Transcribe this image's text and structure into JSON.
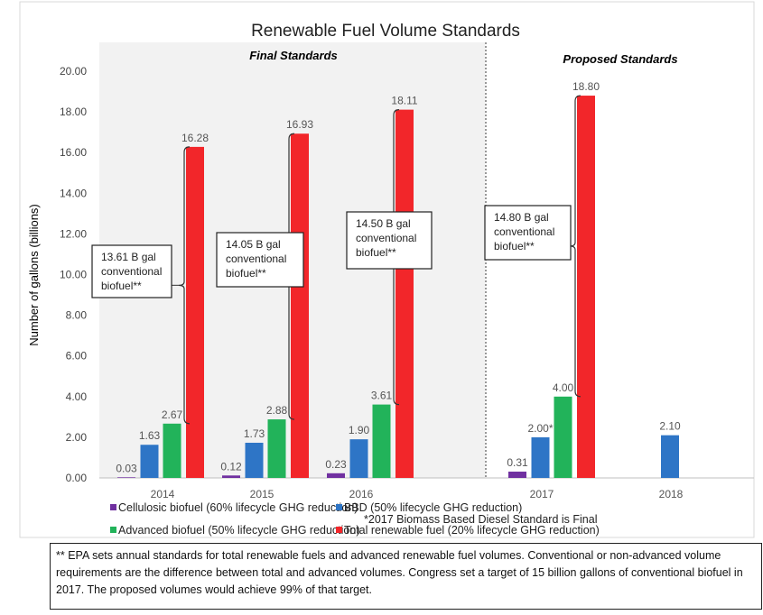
{
  "chart_data": {
    "type": "bar",
    "title": "Renewable Fuel Volume Standards",
    "ylabel": "Number of gallons (billions)",
    "xlabel": "",
    "ylim": [
      0,
      20
    ],
    "yticks": [
      "0.00",
      "2.00",
      "4.00",
      "6.00",
      "8.00",
      "10.00",
      "12.00",
      "14.00",
      "16.00",
      "18.00",
      "20.00"
    ],
    "categories": [
      "2014",
      "2015",
      "2016",
      "2017",
      "2018"
    ],
    "regions": {
      "final": "Final Standards",
      "proposed": "Proposed Standards"
    },
    "series": [
      {
        "name": "Cellulosic biofuel (60% lifecycle GHG reduction)",
        "color": "#7030a0",
        "values": [
          0.03,
          0.12,
          0.23,
          0.31,
          null
        ],
        "labels": [
          "0.03",
          "0.12",
          "0.23",
          "0.31",
          ""
        ]
      },
      {
        "name": "BBD (50% lifecycle GHG reduction)",
        "color": "#2e75c6",
        "values": [
          1.63,
          1.73,
          1.9,
          2.0,
          2.1
        ],
        "labels": [
          "1.63",
          "1.73",
          "1.90",
          "2.00*",
          "2.10"
        ]
      },
      {
        "name": "Advanced biofuel (50% lifecycle GHG reduction)",
        "color": "#22b35a",
        "values": [
          2.67,
          2.88,
          3.61,
          4.0,
          null
        ],
        "labels": [
          "2.67",
          "2.88",
          "3.61",
          "4.00",
          ""
        ]
      },
      {
        "name": "Total renewable fuel (20% lifecycle GHG reduction)",
        "color": "#f2262a",
        "values": [
          16.28,
          16.93,
          18.11,
          18.8,
          null
        ],
        "labels": [
          "16.28",
          "16.93",
          "18.11",
          "18.80",
          ""
        ]
      }
    ],
    "legend_note": "*2017 Biomass Based Diesel Standard is Final",
    "legend_position": "bottom",
    "annotations": [
      {
        "category": "2014",
        "lines": [
          "13.61 B gal",
          "conventional",
          "biofuel**"
        ]
      },
      {
        "category": "2015",
        "lines": [
          "14.05 B gal",
          "conventional",
          "biofuel**"
        ]
      },
      {
        "category": "2016",
        "lines": [
          "14.50 B gal",
          "conventional",
          "biofuel**"
        ]
      },
      {
        "category": "2017",
        "lines": [
          "14.80 B gal",
          "conventional",
          "biofuel**"
        ]
      }
    ]
  },
  "footnote": "** EPA sets annual standards for total renewable fuels and advanced renewable fuel volumes.  Conventional or non-advanced volume requirements are the difference between total and advanced volumes.  Congress set a target of 15 billion gallons of conventional biofuel in 2017.  The proposed volumes would achieve 99% of that target."
}
